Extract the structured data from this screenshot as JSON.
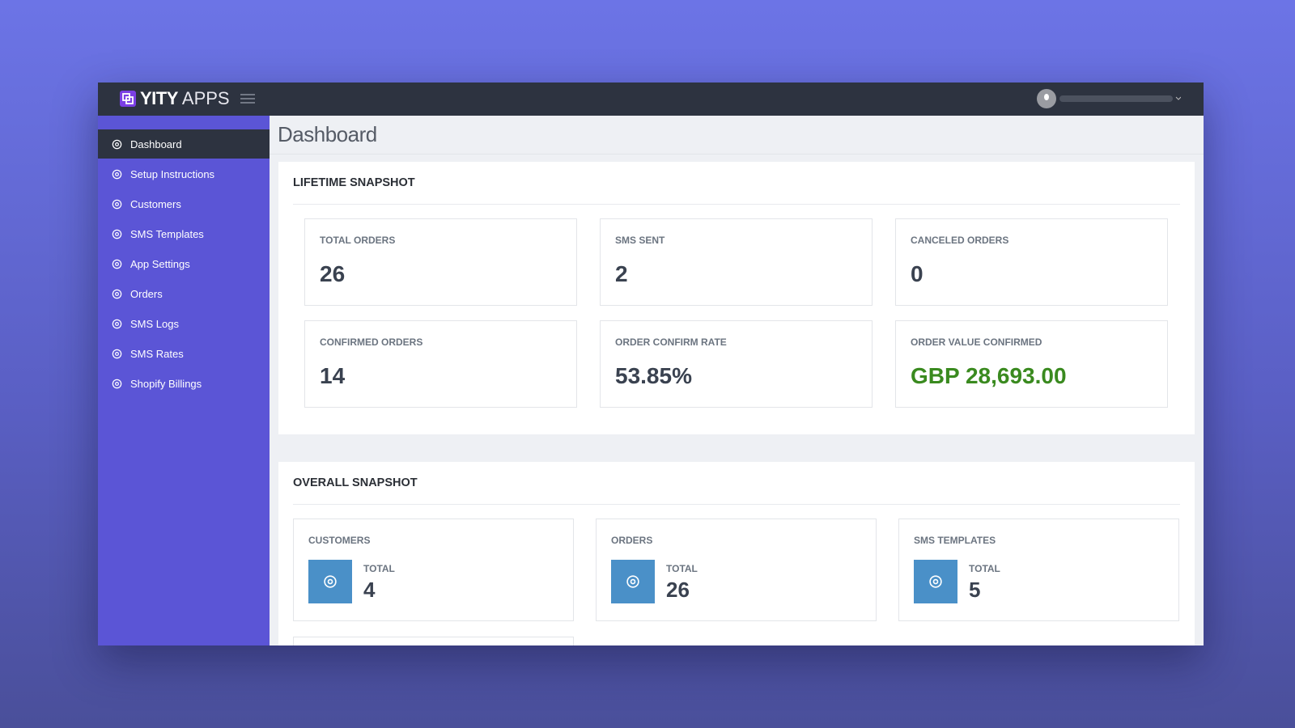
{
  "header": {
    "brand_bold": "YITY",
    "brand_light": "APPS"
  },
  "sidebar": {
    "items": [
      "Dashboard",
      "Setup Instructions",
      "Customers",
      "SMS Templates",
      "App Settings",
      "Orders",
      "SMS Logs",
      "SMS Rates",
      "Shopify Billings"
    ]
  },
  "page_title": "Dashboard",
  "lifetime_snapshot": {
    "title": "LIFETIME SNAPSHOT",
    "cards": [
      {
        "label": "TOTAL ORDERS",
        "value": "26"
      },
      {
        "label": "SMS SENT",
        "value": "2"
      },
      {
        "label": "CANCELED ORDERS",
        "value": "0"
      },
      {
        "label": "CONFIRMED ORDERS",
        "value": "14"
      },
      {
        "label": "ORDER CONFIRM RATE",
        "value": "53.85%"
      },
      {
        "label": "ORDER VALUE CONFIRMED",
        "value": "GBP 28,693.00"
      }
    ]
  },
  "overall_snapshot": {
    "title": "OVERALL SNAPSHOT",
    "cards": [
      {
        "label": "CUSTOMERS",
        "sublabel": "TOTAL",
        "value": "4"
      },
      {
        "label": "ORDERS",
        "sublabel": "TOTAL",
        "value": "26"
      },
      {
        "label": "SMS TEMPLATES",
        "sublabel": "TOTAL",
        "value": "5"
      }
    ]
  }
}
